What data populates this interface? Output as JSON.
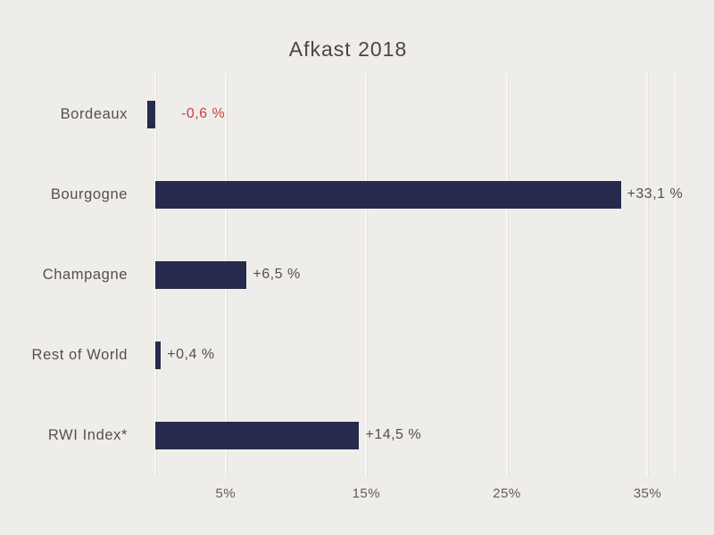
{
  "page": {
    "title": "Afkast 2018"
  },
  "colors": {
    "background": "#EFEDE9",
    "bar": "#262B4D",
    "title": "#4B4641",
    "category_label": "#55504B",
    "positive_value_label": "#55504B",
    "negative_value_label": "#C64341",
    "tick_label": "#615C56",
    "gridline": "#F8F6F3",
    "gridline_shadow": "#E4E1DB"
  },
  "chart_data": {
    "type": "bar",
    "orientation": "horizontal",
    "title": "Afkast 2018",
    "categories": [
      "Bordeaux",
      "Bourgogne",
      "Champagne",
      "Rest of World",
      "RWI Index*"
    ],
    "values": [
      -0.6,
      33.1,
      6.5,
      0.4,
      14.5
    ],
    "value_labels": [
      "-0,6 %",
      "+33,1 %",
      "+6,5 %",
      "+0,4 %",
      "+14,5 %"
    ],
    "series_unit": "%",
    "x_ticks": [
      {
        "value": 5,
        "label": "5%"
      },
      {
        "value": 15,
        "label": "15%"
      },
      {
        "value": 25,
        "label": "25%"
      },
      {
        "value": 35,
        "label": "35%"
      }
    ],
    "gridline_values": [
      0,
      5,
      15,
      25,
      35,
      37
    ],
    "xlim": [
      0,
      37
    ],
    "grid": true,
    "legend": false,
    "xlabel": "",
    "ylabel": ""
  }
}
